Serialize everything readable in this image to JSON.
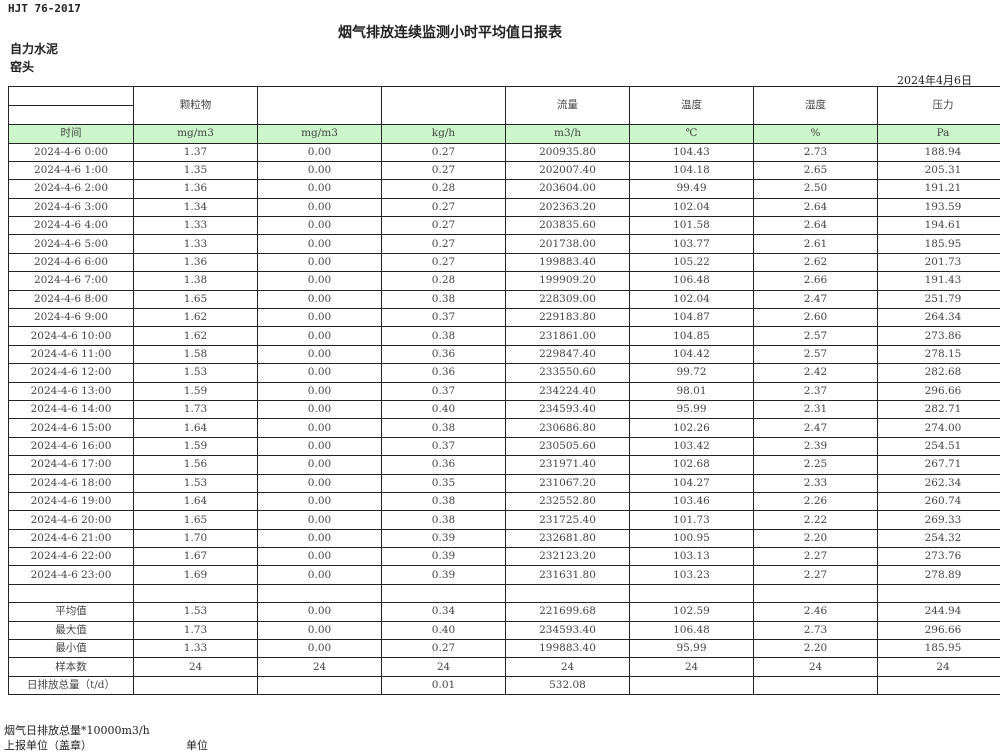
{
  "standard": "HJT  76-2017",
  "title": "烟气排放连续监测小时平均值日报表",
  "company": "自力水泥",
  "location": "窑头",
  "report_date": "2024年4月6日",
  "header": [
    "",
    "颗粒物",
    "",
    "",
    "流量",
    "温度",
    "湿度",
    "压力"
  ],
  "units": [
    "时间",
    "mg/m3",
    "mg/m3",
    "kg/h",
    "m3/h",
    "℃",
    "%",
    "Pa"
  ],
  "rows": [
    [
      "2024-4-6 0:00",
      "1.37",
      "0.00",
      "0.27",
      "200935.80",
      "104.43",
      "2.73",
      "188.94"
    ],
    [
      "2024-4-6 1:00",
      "1.35",
      "0.00",
      "0.27",
      "202007.40",
      "104.18",
      "2.65",
      "205.31"
    ],
    [
      "2024-4-6 2:00",
      "1.36",
      "0.00",
      "0.28",
      "203604.00",
      "99.49",
      "2.50",
      "191.21"
    ],
    [
      "2024-4-6 3:00",
      "1.34",
      "0.00",
      "0.27",
      "202363.20",
      "102.04",
      "2.64",
      "193.59"
    ],
    [
      "2024-4-6 4:00",
      "1.33",
      "0.00",
      "0.27",
      "203835.60",
      "101.58",
      "2.64",
      "194.61"
    ],
    [
      "2024-4-6 5:00",
      "1.33",
      "0.00",
      "0.27",
      "201738.00",
      "103.77",
      "2.61",
      "185.95"
    ],
    [
      "2024-4-6 6:00",
      "1.36",
      "0.00",
      "0.27",
      "199883.40",
      "105.22",
      "2.62",
      "201.73"
    ],
    [
      "2024-4-6 7:00",
      "1.38",
      "0.00",
      "0.28",
      "199909.20",
      "106.48",
      "2.66",
      "191.43"
    ],
    [
      "2024-4-6 8:00",
      "1.65",
      "0.00",
      "0.38",
      "228309.00",
      "102.04",
      "2.47",
      "251.79"
    ],
    [
      "2024-4-6 9:00",
      "1.62",
      "0.00",
      "0.37",
      "229183.80",
      "104.87",
      "2.60",
      "264.34"
    ],
    [
      "2024-4-6 10:00",
      "1.62",
      "0.00",
      "0.38",
      "231861.00",
      "104.85",
      "2.57",
      "273.86"
    ],
    [
      "2024-4-6 11:00",
      "1.58",
      "0.00",
      "0.36",
      "229847.40",
      "104.42",
      "2.57",
      "278.15"
    ],
    [
      "2024-4-6 12:00",
      "1.53",
      "0.00",
      "0.36",
      "233550.60",
      "99.72",
      "2.42",
      "282.68"
    ],
    [
      "2024-4-6 13:00",
      "1.59",
      "0.00",
      "0.37",
      "234224.40",
      "98.01",
      "2.37",
      "296.66"
    ],
    [
      "2024-4-6 14:00",
      "1.73",
      "0.00",
      "0.40",
      "234593.40",
      "95.99",
      "2.31",
      "282.71"
    ],
    [
      "2024-4-6 15:00",
      "1.64",
      "0.00",
      "0.38",
      "230686.80",
      "102.26",
      "2.47",
      "274.00"
    ],
    [
      "2024-4-6 16:00",
      "1.59",
      "0.00",
      "0.37",
      "230505.60",
      "103.42",
      "2.39",
      "254.51"
    ],
    [
      "2024-4-6 17:00",
      "1.56",
      "0.00",
      "0.36",
      "231971.40",
      "102.68",
      "2.25",
      "267.71"
    ],
    [
      "2024-4-6 18:00",
      "1.53",
      "0.00",
      "0.35",
      "231067.20",
      "104.27",
      "2.33",
      "262.34"
    ],
    [
      "2024-4-6 19:00",
      "1.64",
      "0.00",
      "0.38",
      "232552.80",
      "103.46",
      "2.26",
      "260.74"
    ],
    [
      "2024-4-6 20:00",
      "1.65",
      "0.00",
      "0.38",
      "231725.40",
      "101.73",
      "2.22",
      "269.33"
    ],
    [
      "2024-4-6 21:00",
      "1.70",
      "0.00",
      "0.39",
      "232681.80",
      "100.95",
      "2.20",
      "254.32"
    ],
    [
      "2024-4-6 22:00",
      "1.67",
      "0.00",
      "0.39",
      "232123.20",
      "103.13",
      "2.27",
      "273.76"
    ],
    [
      "2024-4-6 23:00",
      "1.69",
      "0.00",
      "0.39",
      "231631.80",
      "103.23",
      "2.27",
      "278.89"
    ],
    [
      "",
      "",
      "",
      "",
      "",
      "",
      "",
      ""
    ],
    [
      "平均值",
      "1.53",
      "0.00",
      "0.34",
      "221699.68",
      "102.59",
      "2.46",
      "244.94"
    ],
    [
      "最大值",
      "1.73",
      "0.00",
      "0.40",
      "234593.40",
      "106.48",
      "2.73",
      "296.66"
    ],
    [
      "最小值",
      "1.33",
      "0.00",
      "0.27",
      "199883.40",
      "95.99",
      "2.20",
      "185.95"
    ],
    [
      "样本数",
      "24",
      "24",
      "24",
      "24",
      "24",
      "24",
      "24"
    ],
    [
      "日排放总量（t/d）",
      "",
      "",
      "0.01",
      "532.08",
      "",
      "",
      ""
    ]
  ],
  "footer": {
    "note": "烟气日排放总量*10000m3/h",
    "reporter_label": "上报单位（盖章）",
    "unit_label": "单位"
  },
  "colors": {
    "unit_row_bg": "#ccf5cc",
    "border": "#222222"
  }
}
